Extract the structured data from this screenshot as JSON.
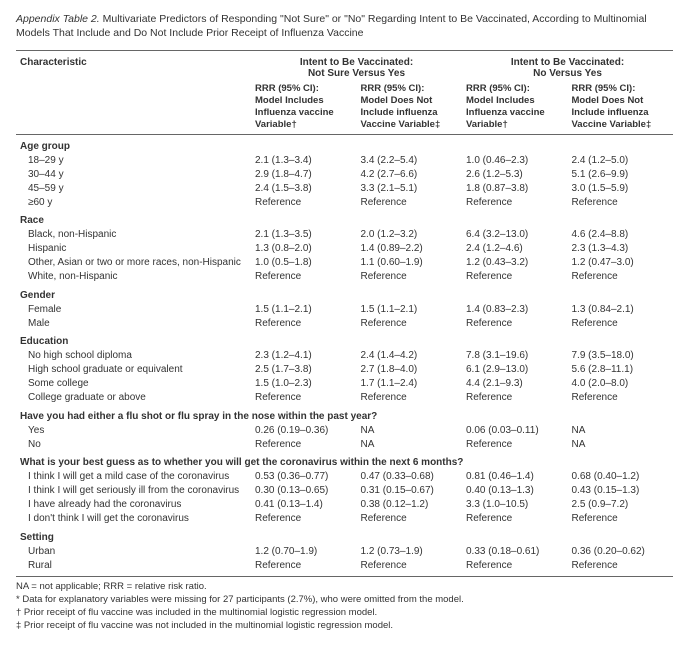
{
  "title_label": "Appendix Table 2.",
  "title_text": "Multivariate Predictors of Responding \"Not Sure\" or \"No\" Regarding Intent to Be Vaccinated, According to Multinomial Models That Include and Do Not Include Prior Receipt of Influenza Vaccine",
  "col_char": "Characteristic",
  "super1": "Intent to Be Vaccinated:\nNot Sure Versus Yes",
  "super2": "Intent to Be Vaccinated:\nNo Versus Yes",
  "sub_a": "RRR (95% CI):\nModel Includes\nInfluenza vaccine\nVariable†",
  "sub_b": "RRR (95% CI):\nModel Does Not\nInclude influenza\nVaccine Variable‡",
  "groups": [
    {
      "name": "Age group",
      "rows": [
        {
          "label": "18–29 y",
          "c": [
            "2.1 (1.3–3.4)",
            "3.4 (2.2–5.4)",
            "1.0 (0.46–2.3)",
            "2.4 (1.2–5.0)"
          ]
        },
        {
          "label": "30–44 y",
          "c": [
            "2.9 (1.8–4.7)",
            "4.2 (2.7–6.6)",
            "2.6 (1.2–5.3)",
            "5.1 (2.6–9.9)"
          ]
        },
        {
          "label": "45–59 y",
          "c": [
            "2.4 (1.5–3.8)",
            "3.3 (2.1–5.1)",
            "1.8 (0.87–3.8)",
            "3.0 (1.5–5.9)"
          ]
        },
        {
          "label": "≥60 y",
          "c": [
            "Reference",
            "Reference",
            "Reference",
            "Reference"
          ]
        }
      ]
    },
    {
      "name": "Race",
      "rows": [
        {
          "label": "Black, non-Hispanic",
          "c": [
            "2.1 (1.3–3.5)",
            "2.0 (1.2–3.2)",
            "6.4 (3.2–13.0)",
            "4.6 (2.4–8.8)"
          ]
        },
        {
          "label": "Hispanic",
          "c": [
            "1.3 (0.8–2.0)",
            "1.4 (0.89–2.2)",
            "2.4 (1.2–4.6)",
            "2.3 (1.3–4.3)"
          ]
        },
        {
          "label": "Other, Asian or two or more races, non-Hispanic",
          "c": [
            "1.0 (0.5–1.8)",
            "1.1 (0.60–1.9)",
            "1.2 (0.43–3.2)",
            "1.2 (0.47–3.0)"
          ]
        },
        {
          "label": "White, non-Hispanic",
          "c": [
            "Reference",
            "Reference",
            "Reference",
            "Reference"
          ]
        }
      ]
    },
    {
      "name": "Gender",
      "rows": [
        {
          "label": "Female",
          "c": [
            "1.5 (1.1–2.1)",
            "1.5 (1.1–2.1)",
            "1.4 (0.83–2.3)",
            "1.3 (0.84–2.1)"
          ]
        },
        {
          "label": "Male",
          "c": [
            "Reference",
            "Reference",
            "Reference",
            "Reference"
          ]
        }
      ]
    },
    {
      "name": "Education",
      "rows": [
        {
          "label": "No high school diploma",
          "c": [
            "2.3 (1.2–4.1)",
            "2.4 (1.4–4.2)",
            "7.8 (3.1–19.6)",
            "7.9 (3.5–18.0)"
          ]
        },
        {
          "label": "High school graduate or equivalent",
          "c": [
            "2.5 (1.7–3.8)",
            "2.7 (1.8–4.0)",
            "6.1 (2.9–13.0)",
            "5.6 (2.8–11.1)"
          ]
        },
        {
          "label": "Some college",
          "c": [
            "1.5 (1.0–2.3)",
            "1.7 (1.1–2.4)",
            "4.4 (2.1–9.3)",
            "4.0 (2.0–8.0)"
          ]
        },
        {
          "label": "College graduate or above",
          "c": [
            "Reference",
            "Reference",
            "Reference",
            "Reference"
          ]
        }
      ]
    },
    {
      "name": "Have you had either a flu shot or flu spray in the nose within the past year?",
      "rows": [
        {
          "label": "Yes",
          "c": [
            "0.26 (0.19–0.36)",
            "NA",
            "0.06 (0.03–0.11)",
            "NA"
          ]
        },
        {
          "label": "No",
          "c": [
            "Reference",
            "NA",
            "Reference",
            "NA"
          ]
        }
      ]
    },
    {
      "name": "What is your best guess as to whether you will get the coronavirus within the next 6 months?",
      "rows": [
        {
          "label": "I think I will get a mild case of the coronavirus",
          "c": [
            "0.53 (0.36–0.77)",
            "0.47 (0.33–0.68)",
            "0.81 (0.46–1.4)",
            "0.68 (0.40–1.2)"
          ]
        },
        {
          "label": "I think I will get seriously ill from the coronavirus",
          "c": [
            "0.30 (0.13–0.65)",
            "0.31 (0.15–0.67)",
            "0.40 (0.13–1.3)",
            "0.43 (0.15–1.3)"
          ]
        },
        {
          "label": "I have already had the coronavirus",
          "c": [
            "0.41 (0.13–1.4)",
            "0.38 (0.12–1.2)",
            "3.3 (1.0–10.5)",
            "2.5 (0.9–7.2)"
          ]
        },
        {
          "label": "I don't think I will get the coronavirus",
          "c": [
            "Reference",
            "Reference",
            "Reference",
            "Reference"
          ]
        }
      ]
    },
    {
      "name": "Setting",
      "rows": [
        {
          "label": "Urban",
          "c": [
            "1.2 (0.70–1.9)",
            "1.2 (0.73–1.9)",
            "0.33 (0.18–0.61)",
            "0.36 (0.20–0.62)"
          ]
        },
        {
          "label": "Rural",
          "c": [
            "Reference",
            "Reference",
            "Reference",
            "Reference"
          ]
        }
      ]
    }
  ],
  "footnotes": [
    "NA = not applicable; RRR = relative risk ratio.",
    "* Data for explanatory variables were missing for 27 participants (2.7%), who were omitted from the model.",
    "† Prior receipt of flu vaccine was included in the multinomial logistic regression model.",
    "‡ Prior receipt of flu vaccine was not included in the multinomial logistic regression model."
  ]
}
